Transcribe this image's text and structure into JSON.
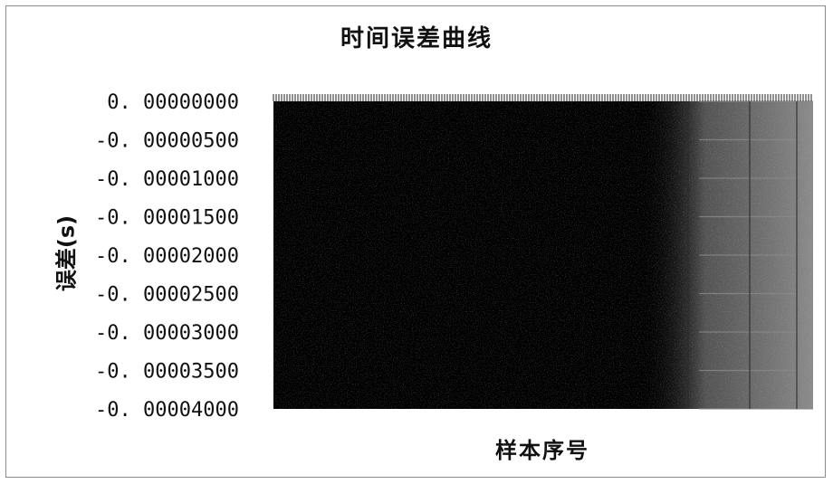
{
  "chart_data": {
    "type": "line",
    "title": "时间误差曲线",
    "xlabel": "样本序号",
    "ylabel": "误差(s)",
    "ylim": [
      -4e-05,
      0.0
    ],
    "yticks": [
      {
        "value": 0.0,
        "label": "0. 00000000"
      },
      {
        "value": -5e-06,
        "label": "-0. 00000500"
      },
      {
        "value": -1e-05,
        "label": "-0. 00001000"
      },
      {
        "value": -1.5e-05,
        "label": "-0. 00001500"
      },
      {
        "value": -2e-05,
        "label": "-0. 00002000"
      },
      {
        "value": -2.5e-05,
        "label": "-0. 00002500"
      },
      {
        "value": -3e-05,
        "label": "-0. 00003000"
      },
      {
        "value": -3.5e-05,
        "label": "-0. 00003500"
      },
      {
        "value": -4e-05,
        "label": "-0. 00004000"
      }
    ],
    "legend": "none",
    "grid": true,
    "colors": {
      "fill": "#000000",
      "grid": "#8a8a8a",
      "text": "#111111"
    }
  }
}
